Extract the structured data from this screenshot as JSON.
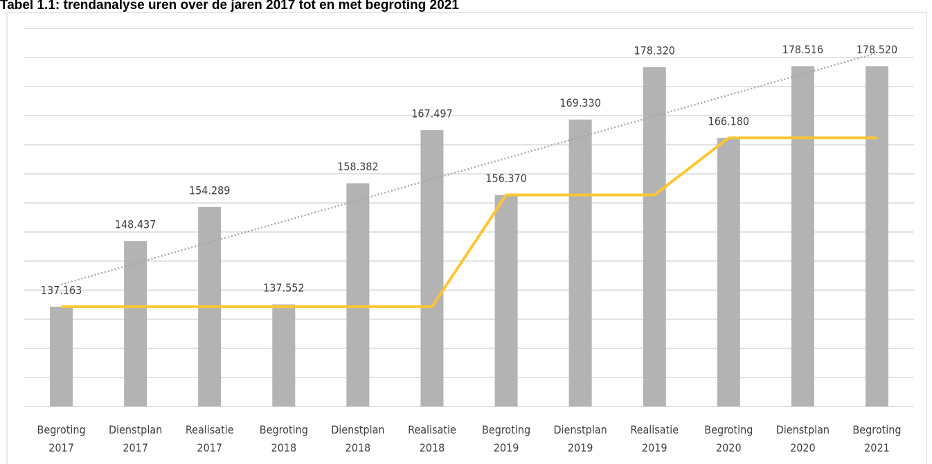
{
  "chart_data": {
    "type": "bar",
    "title": "Tabel 1.1: trendanalyse uren over de jaren 2017 tot en met begroting 2021",
    "categories": [
      "Begroting 2017",
      "Dienstplan 2017",
      "Realisatie 2017",
      "Begroting 2018",
      "Dienstplan 2018",
      "Realisatie 2018",
      "Begroting 2019",
      "Dienstplan 2019",
      "Realisatie 2019",
      "Begroting 2020",
      "Dienstplan 2020",
      "Begroting 2021"
    ],
    "series": [
      {
        "type": "bar",
        "color": "#b3b3b3",
        "values": [
          137163,
          148437,
          154289,
          137552,
          158382,
          167497,
          156370,
          169330,
          178320,
          166180,
          178516,
          178520
        ],
        "value_labels": [
          "137.163",
          "148.437",
          "154.289",
          "137.552",
          "158.382",
          "167.497",
          "156.370",
          "169.330",
          "178.320",
          "166.180",
          "178.516",
          "178.520"
        ]
      },
      {
        "type": "line",
        "color": "#ffc533",
        "values": [
          137163,
          137163,
          137163,
          137163,
          137163,
          137163,
          156370,
          156370,
          156370,
          166180,
          166180,
          166180
        ]
      }
    ],
    "trendline": true,
    "trendline_color": "#a6a6a6",
    "ylim": [
      120000,
      185000
    ],
    "yticks": [
      120000,
      125000,
      130000,
      135000,
      140000,
      145000,
      150000,
      155000,
      160000,
      165000,
      170000,
      175000,
      180000,
      185000
    ],
    "show_ytick_labels": false,
    "grid": true
  }
}
